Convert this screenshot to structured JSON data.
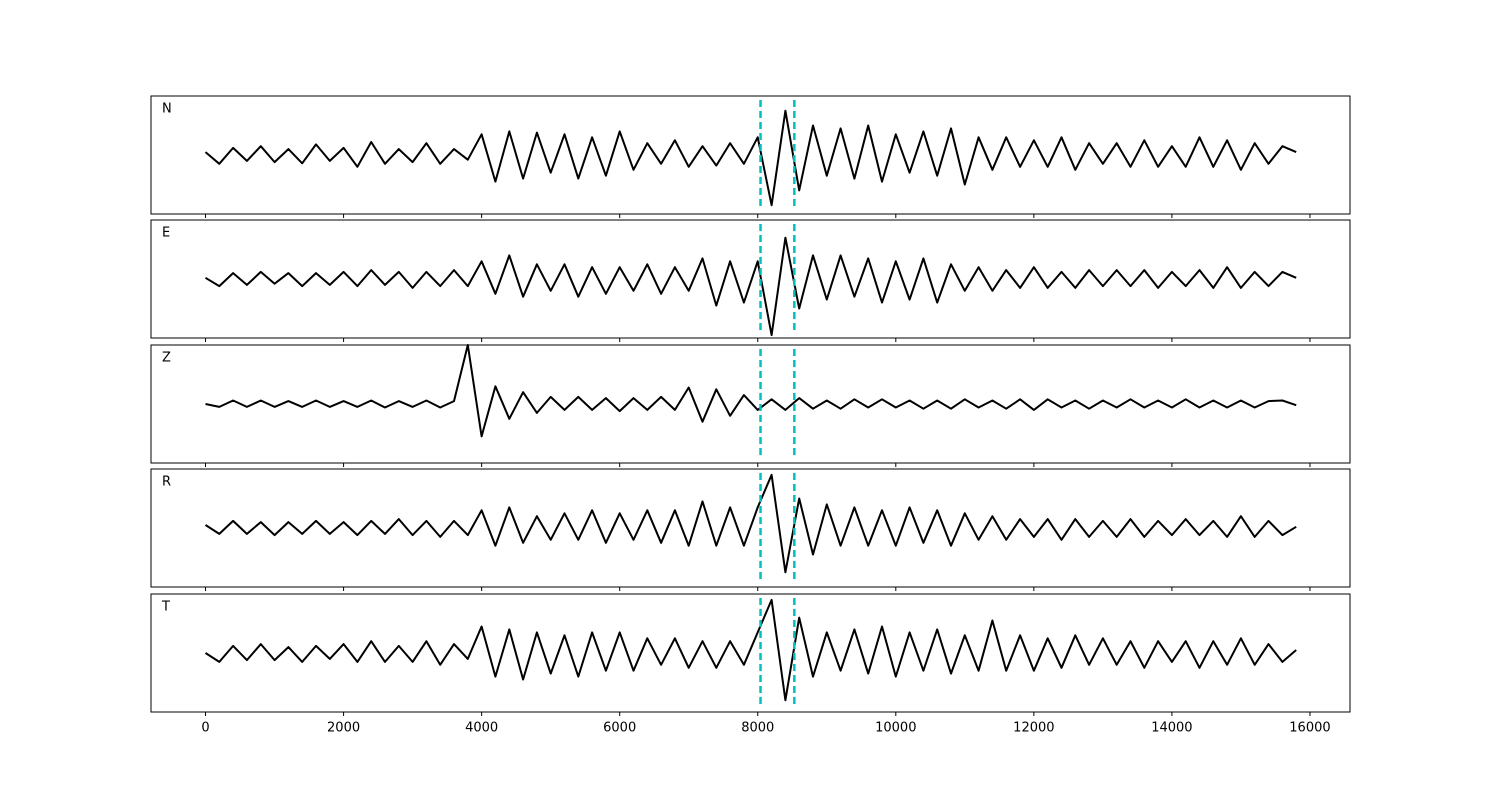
{
  "chart_data": {
    "type": "line",
    "x": [
      0,
      200,
      400,
      600,
      800,
      1000,
      1200,
      1400,
      1600,
      1800,
      2000,
      2200,
      2400,
      2600,
      2800,
      3000,
      3200,
      3400,
      3600,
      3800,
      4000,
      4200,
      4400,
      4600,
      4800,
      5000,
      5200,
      5400,
      5600,
      5800,
      6000,
      6200,
      6400,
      6600,
      6800,
      7000,
      7200,
      7400,
      7600,
      7800,
      8000,
      8200,
      8400,
      8600,
      8800,
      9000,
      9200,
      9400,
      9600,
      9800,
      10000,
      10200,
      10400,
      10600,
      10800,
      11000,
      11200,
      11400,
      11600,
      11800,
      12000,
      12200,
      12400,
      12600,
      12800,
      13000,
      13200,
      13400,
      13600,
      13800,
      14000,
      14200,
      14400,
      14600,
      14800,
      15000,
      15200,
      15400,
      15600,
      15800
    ],
    "series": [
      {
        "name": "N",
        "color": "#000000",
        "values": [
          0.05,
          -0.15,
          0.12,
          -0.1,
          0.15,
          -0.12,
          0.1,
          -0.14,
          0.18,
          -0.1,
          0.12,
          -0.2,
          0.22,
          -0.15,
          0.1,
          -0.12,
          0.2,
          -0.15,
          0.1,
          -0.08,
          0.35,
          -0.45,
          0.4,
          -0.4,
          0.38,
          -0.3,
          0.35,
          -0.4,
          0.3,
          -0.35,
          0.4,
          -0.25,
          0.2,
          -0.15,
          0.25,
          -0.2,
          0.15,
          -0.18,
          0.2,
          -0.15,
          0.3,
          -0.85,
          0.75,
          -0.6,
          0.5,
          -0.35,
          0.45,
          -0.4,
          0.5,
          -0.45,
          0.35,
          -0.3,
          0.4,
          -0.35,
          0.45,
          -0.5,
          0.3,
          -0.25,
          0.3,
          -0.2,
          0.25,
          -0.2,
          0.3,
          -0.25,
          0.2,
          -0.15,
          0.2,
          -0.2,
          0.25,
          -0.2,
          0.15,
          -0.2,
          0.3,
          -0.2,
          0.25,
          -0.25,
          0.2,
          -0.15,
          0.15,
          0.05
        ]
      },
      {
        "name": "E",
        "color": "#000000",
        "values": [
          0.02,
          -0.12,
          0.1,
          -0.1,
          0.12,
          -0.08,
          0.1,
          -0.12,
          0.1,
          -0.1,
          0.12,
          -0.12,
          0.15,
          -0.1,
          0.12,
          -0.15,
          0.12,
          -0.12,
          0.15,
          -0.12,
          0.3,
          -0.25,
          0.4,
          -0.3,
          0.25,
          -0.2,
          0.25,
          -0.3,
          0.2,
          -0.25,
          0.2,
          -0.2,
          0.25,
          -0.25,
          0.2,
          -0.2,
          0.35,
          -0.45,
          0.3,
          -0.4,
          0.3,
          -0.95,
          0.7,
          -0.5,
          0.4,
          -0.35,
          0.4,
          -0.3,
          0.35,
          -0.4,
          0.3,
          -0.35,
          0.35,
          -0.4,
          0.25,
          -0.2,
          0.2,
          -0.2,
          0.15,
          -0.15,
          0.2,
          -0.15,
          0.12,
          -0.15,
          0.15,
          -0.12,
          0.15,
          -0.12,
          0.15,
          -0.15,
          0.12,
          -0.12,
          0.15,
          -0.15,
          0.2,
          -0.15,
          0.12,
          -0.12,
          0.12,
          0.02
        ]
      },
      {
        "name": "Z",
        "color": "#000000",
        "values": [
          0.0,
          -0.05,
          0.06,
          -0.05,
          0.06,
          -0.05,
          0.05,
          -0.05,
          0.06,
          -0.05,
          0.05,
          -0.05,
          0.06,
          -0.06,
          0.05,
          -0.05,
          0.06,
          -0.06,
          0.05,
          1.0,
          -0.55,
          0.3,
          -0.25,
          0.2,
          -0.15,
          0.12,
          -0.1,
          0.12,
          -0.1,
          0.1,
          -0.12,
          0.1,
          -0.1,
          0.12,
          -0.1,
          0.28,
          -0.3,
          0.25,
          -0.2,
          0.15,
          -0.1,
          0.08,
          -0.1,
          0.1,
          -0.08,
          0.06,
          -0.08,
          0.08,
          -0.06,
          0.08,
          -0.06,
          0.06,
          -0.08,
          0.06,
          -0.08,
          0.08,
          -0.06,
          0.06,
          -0.08,
          0.08,
          -0.1,
          0.08,
          -0.06,
          0.06,
          -0.08,
          0.06,
          -0.06,
          0.08,
          -0.06,
          0.06,
          -0.06,
          0.08,
          -0.06,
          0.06,
          -0.06,
          0.06,
          -0.06,
          0.05,
          0.06,
          -0.02
        ]
      },
      {
        "name": "R",
        "color": "#000000",
        "values": [
          0.05,
          -0.1,
          0.12,
          -0.1,
          0.1,
          -0.12,
          0.1,
          -0.1,
          0.12,
          -0.1,
          0.1,
          -0.12,
          0.12,
          -0.1,
          0.15,
          -0.12,
          0.12,
          -0.15,
          0.12,
          -0.12,
          0.3,
          -0.3,
          0.35,
          -0.25,
          0.2,
          -0.2,
          0.25,
          -0.2,
          0.3,
          -0.25,
          0.25,
          -0.2,
          0.3,
          -0.25,
          0.3,
          -0.3,
          0.45,
          -0.3,
          0.35,
          -0.3,
          0.35,
          0.9,
          -0.75,
          0.5,
          -0.45,
          0.4,
          -0.3,
          0.35,
          -0.3,
          0.3,
          -0.3,
          0.35,
          -0.25,
          0.3,
          -0.3,
          0.25,
          -0.2,
          0.2,
          -0.2,
          0.15,
          -0.15,
          0.15,
          -0.2,
          0.15,
          -0.15,
          0.12,
          -0.15,
          0.15,
          -0.15,
          0.12,
          -0.12,
          0.15,
          -0.12,
          0.12,
          -0.15,
          0.2,
          -0.15,
          0.12,
          -0.12,
          0.02
        ]
      },
      {
        "name": "T",
        "color": "#000000",
        "values": [
          0.0,
          -0.15,
          0.12,
          -0.12,
          0.15,
          -0.12,
          0.1,
          -0.15,
          0.12,
          -0.1,
          0.15,
          -0.15,
          0.2,
          -0.15,
          0.12,
          -0.15,
          0.2,
          -0.2,
          0.15,
          -0.1,
          0.45,
          -0.4,
          0.4,
          -0.45,
          0.35,
          -0.35,
          0.3,
          -0.4,
          0.35,
          -0.3,
          0.35,
          -0.3,
          0.25,
          -0.2,
          0.25,
          -0.25,
          0.2,
          -0.25,
          0.2,
          -0.2,
          0.35,
          0.9,
          -0.8,
          0.6,
          -0.4,
          0.35,
          -0.3,
          0.4,
          -0.35,
          0.45,
          -0.4,
          0.35,
          -0.3,
          0.4,
          -0.35,
          0.3,
          -0.3,
          0.55,
          -0.3,
          0.3,
          -0.3,
          0.25,
          -0.25,
          0.3,
          -0.2,
          0.25,
          -0.2,
          0.2,
          -0.25,
          0.2,
          -0.15,
          0.2,
          -0.25,
          0.2,
          -0.2,
          0.25,
          -0.2,
          0.15,
          -0.15,
          0.05
        ]
      }
    ],
    "vlines": {
      "values": [
        8040,
        8530
      ],
      "color": "#00bfbf"
    },
    "xlim": [
      -790,
      16580
    ],
    "xticks": [
      0,
      2000,
      4000,
      6000,
      8000,
      10000,
      12000,
      14000,
      16000
    ],
    "ylim": [
      -1,
      1
    ]
  }
}
